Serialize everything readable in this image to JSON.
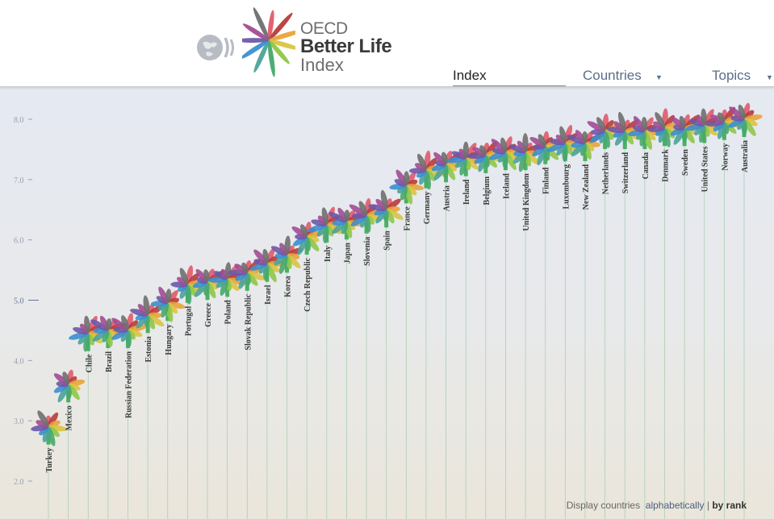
{
  "header": {
    "logo_oecd": "OECD",
    "logo_better": "Better Life",
    "logo_index": "Index",
    "nav": {
      "index_label": "Index",
      "countries_label": "Countries",
      "topics_label": "Topics"
    }
  },
  "controls": {
    "display_label": "Display countries",
    "alphabetically_label": "alphabetically",
    "separator": "|",
    "by_rank_label": "by rank"
  },
  "colors": {
    "stem": "#4caf64",
    "grid_line": "#9cc9a6",
    "petals": [
      "#e05a6a",
      "#b83b3b",
      "#e8a33a",
      "#d9c442",
      "#8fc64a",
      "#47a86b",
      "#4aa39a",
      "#3a8fcf",
      "#6d58a8",
      "#a14c93",
      "#6f6f6f"
    ]
  },
  "chart_data": {
    "type": "scatter",
    "ylim": [
      1.8,
      8.6
    ],
    "yticks": [
      "8.0",
      "7.0",
      "6.0",
      "5.0",
      "4.0",
      "3.0",
      "2.0"
    ],
    "ytick_values": [
      8,
      7,
      6,
      5,
      4,
      3,
      2
    ],
    "categories": [
      "Turkey",
      "Mexico",
      "Chile",
      "Brazil",
      "Russian Federation",
      "Estonia",
      "Hungary",
      "Portugal",
      "Greece",
      "Poland",
      "Slovak Republic",
      "Israel",
      "Korea",
      "Czech Republic",
      "Italy",
      "Japan",
      "Slovenia",
      "Spain",
      "France",
      "Germany",
      "Austria",
      "Ireland",
      "Belgium",
      "Iceland",
      "United Kingdom",
      "Finland",
      "Luxembourg",
      "New Zealand",
      "Netherlands",
      "Switzerland",
      "Canada",
      "Denmark",
      "Sweden",
      "United States",
      "Norway",
      "Australia"
    ],
    "values": [
      2.9,
      3.6,
      4.45,
      4.5,
      4.5,
      4.75,
      4.95,
      5.25,
      5.3,
      5.35,
      5.45,
      5.6,
      5.75,
      6.05,
      6.25,
      6.3,
      6.4,
      6.5,
      6.9,
      7.15,
      7.25,
      7.35,
      7.4,
      7.45,
      7.45,
      7.55,
      7.6,
      7.6,
      7.8,
      7.8,
      7.8,
      7.85,
      7.85,
      7.9,
      7.95,
      8.0
    ]
  }
}
